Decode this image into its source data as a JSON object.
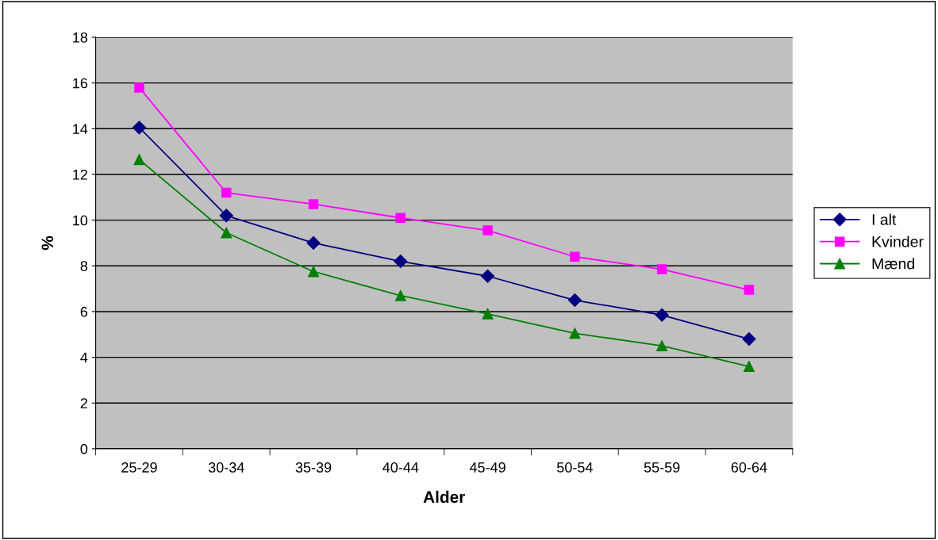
{
  "chart_data": {
    "type": "line",
    "xlabel": "Alder",
    "ylabel": "%",
    "categories": [
      "25-29",
      "30-34",
      "35-39",
      "40-44",
      "45-49",
      "50-54",
      "55-59",
      "60-64"
    ],
    "series": [
      {
        "name": "I alt",
        "color": "#000080",
        "marker": "diamond",
        "values": [
          14.05,
          10.2,
          9.0,
          8.2,
          7.55,
          6.5,
          5.85,
          4.8
        ]
      },
      {
        "name": "Kvinder",
        "color": "#ff00ff",
        "marker": "square",
        "values": [
          15.8,
          11.2,
          10.7,
          10.1,
          9.55,
          8.4,
          7.85,
          6.95
        ]
      },
      {
        "name": "Mænd",
        "color": "#008000",
        "marker": "triangle",
        "values": [
          12.65,
          9.45,
          7.75,
          6.7,
          5.9,
          5.05,
          4.5,
          3.6
        ]
      }
    ],
    "ylim": [
      0,
      18
    ],
    "yticks": [
      0,
      2,
      4,
      6,
      8,
      10,
      12,
      14,
      16,
      18
    ],
    "grid": "y",
    "legend": "right",
    "line_style": "solid"
  }
}
